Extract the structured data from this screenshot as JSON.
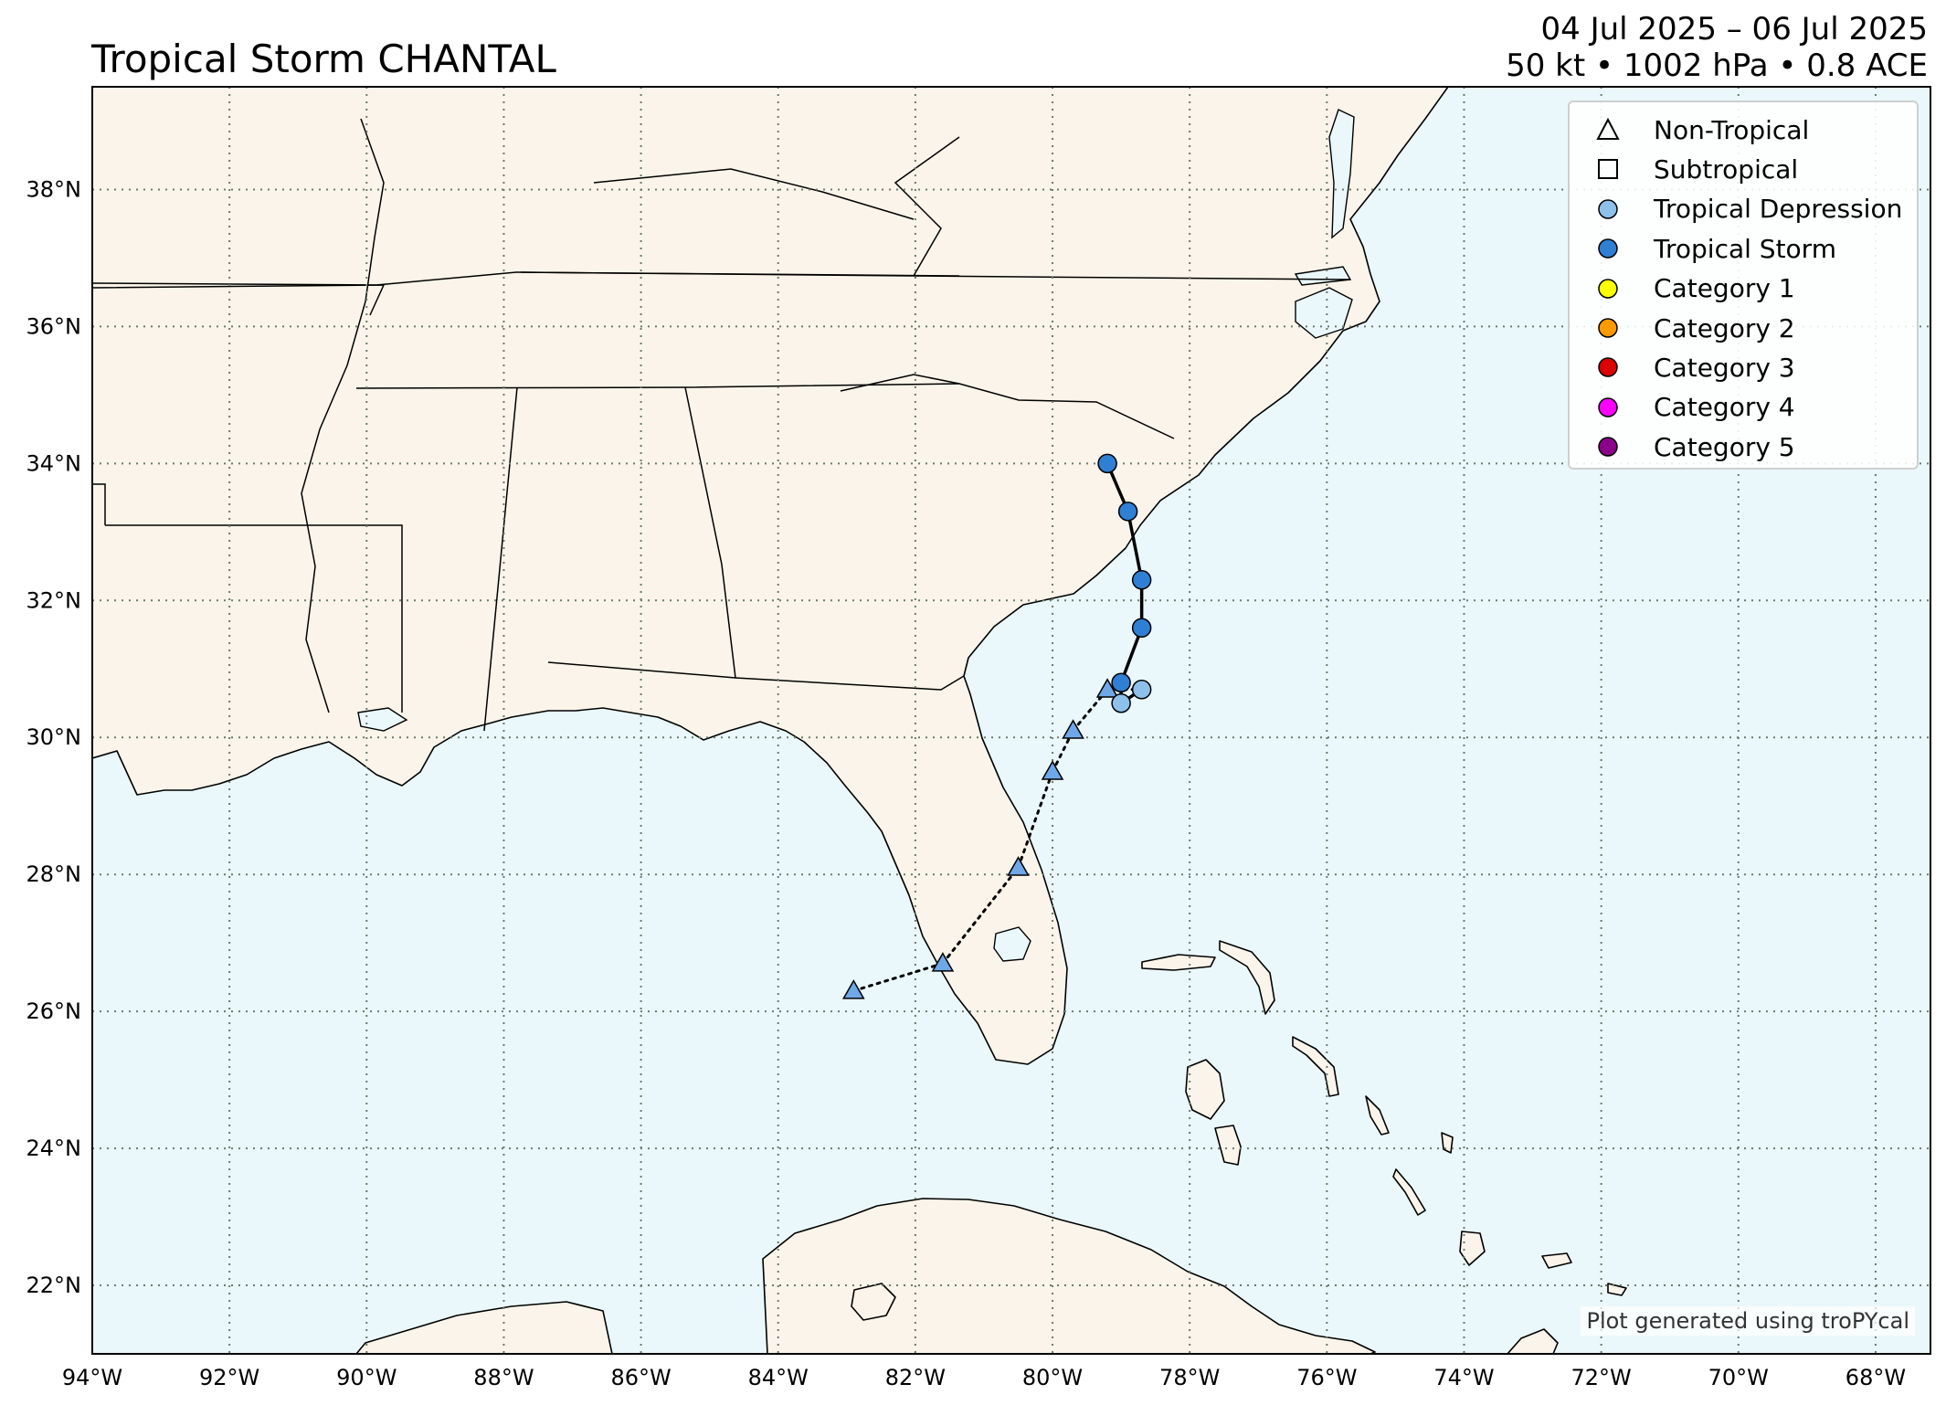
{
  "title": "Tropical Storm CHANTAL",
  "date_range": "04 Jul 2025 – 06 Jul 2025",
  "stats": "50 kt • 1002 hPa • 0.8 ACE",
  "credit": "Plot generated using troPYcal",
  "map_extent": {
    "lon": [
      -94,
      -67.2
    ],
    "lat": [
      21,
      39.5
    ]
  },
  "lon_ticks": [
    {
      "value": -94,
      "label": "94°W"
    },
    {
      "value": -92,
      "label": "92°W"
    },
    {
      "value": -90,
      "label": "90°W"
    },
    {
      "value": -88,
      "label": "88°W"
    },
    {
      "value": -86,
      "label": "86°W"
    },
    {
      "value": -84,
      "label": "84°W"
    },
    {
      "value": -82,
      "label": "82°W"
    },
    {
      "value": -80,
      "label": "80°W"
    },
    {
      "value": -78,
      "label": "78°W"
    },
    {
      "value": -76,
      "label": "76°W"
    },
    {
      "value": -74,
      "label": "74°W"
    },
    {
      "value": -72,
      "label": "72°W"
    },
    {
      "value": -70,
      "label": "70°W"
    },
    {
      "value": -68,
      "label": "68°W"
    }
  ],
  "lat_ticks": [
    {
      "value": 22,
      "label": "22°N"
    },
    {
      "value": 24,
      "label": "24°N"
    },
    {
      "value": 26,
      "label": "26°N"
    },
    {
      "value": 28,
      "label": "28°N"
    },
    {
      "value": 30,
      "label": "30°N"
    },
    {
      "value": 32,
      "label": "32°N"
    },
    {
      "value": 34,
      "label": "34°N"
    },
    {
      "value": 36,
      "label": "36°N"
    },
    {
      "value": 38,
      "label": "38°N"
    }
  ],
  "colors": {
    "land": "#faf4ea",
    "ocean": "#eaf8fc",
    "grid": "#6b7b6b",
    "non_tropical": "#6fa8e8",
    "tropical_depression": "#8ec0ec",
    "tropical_storm": "#2f7fd4",
    "cat1": "#ffff00",
    "cat2": "#ff9900",
    "cat3": "#dd0000",
    "cat4": "#ff00ff",
    "cat5": "#8b008b"
  },
  "legend": [
    {
      "label": "Non-Tropical",
      "symbol": "triangle-open",
      "color": "#ffffff"
    },
    {
      "label": "Subtropical",
      "symbol": "square-open",
      "color": "#ffffff"
    },
    {
      "label": "Tropical Depression",
      "symbol": "circle",
      "color": "#8ec0ec"
    },
    {
      "label": "Tropical Storm",
      "symbol": "circle",
      "color": "#2f7fd4"
    },
    {
      "label": "Category 1",
      "symbol": "circle",
      "color": "#ffff00"
    },
    {
      "label": "Category 2",
      "symbol": "circle",
      "color": "#ff9900"
    },
    {
      "label": "Category 3",
      "symbol": "circle",
      "color": "#dd0000"
    },
    {
      "label": "Category 4",
      "symbol": "circle",
      "color": "#ff00ff"
    },
    {
      "label": "Category 5",
      "symbol": "circle",
      "color": "#8b008b"
    }
  ],
  "track": [
    {
      "lon": -82.9,
      "lat": 26.3,
      "type": "non-tropical",
      "intensity": "low"
    },
    {
      "lon": -81.6,
      "lat": 26.7,
      "type": "non-tropical",
      "intensity": "low"
    },
    {
      "lon": -80.5,
      "lat": 28.1,
      "type": "non-tropical",
      "intensity": "low"
    },
    {
      "lon": -80.0,
      "lat": 29.5,
      "type": "non-tropical",
      "intensity": "low"
    },
    {
      "lon": -79.7,
      "lat": 30.1,
      "type": "non-tropical",
      "intensity": "low"
    },
    {
      "lon": -79.2,
      "lat": 30.7,
      "type": "non-tropical",
      "intensity": "low"
    },
    {
      "lon": -78.7,
      "lat": 30.7,
      "type": "tropical",
      "intensity": "td"
    },
    {
      "lon": -79.0,
      "lat": 30.5,
      "type": "tropical",
      "intensity": "td"
    },
    {
      "lon": -79.0,
      "lat": 30.8,
      "type": "tropical",
      "intensity": "ts"
    },
    {
      "lon": -78.7,
      "lat": 31.6,
      "type": "tropical",
      "intensity": "ts"
    },
    {
      "lon": -78.7,
      "lat": 32.3,
      "type": "tropical",
      "intensity": "ts"
    },
    {
      "lon": -78.9,
      "lat": 33.3,
      "type": "tropical",
      "intensity": "ts"
    },
    {
      "lon": -79.2,
      "lat": 34.0,
      "type": "tropical",
      "intensity": "ts"
    }
  ]
}
